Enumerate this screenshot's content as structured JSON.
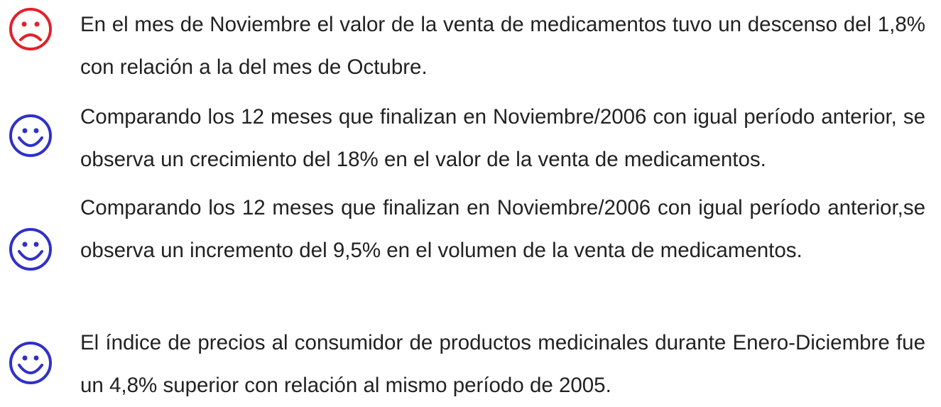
{
  "items": [
    {
      "text": "En el mes de Noviembre el valor de la venta de medicamentos tuvo un descenso del 1,8% con relación a la del mes de Octubre."
    },
    {
      "text": "Comparando los 12 meses que finalizan en Noviembre/2006 con igual período anterior, se observa un crecimiento del 18% en el valor de la venta de medicamentos."
    },
    {
      "text": "Comparando los 12 meses que finalizan en Noviembre/2006 con igual período anterior,se observa un incremento del 9,5% en el volumen de la venta de medicamentos."
    },
    {
      "text": "El índice de precios al consumidor de productos medicinales durante Enero-Diciembre fue un 4,8% superior con relación al mismo período de 2005."
    }
  ]
}
